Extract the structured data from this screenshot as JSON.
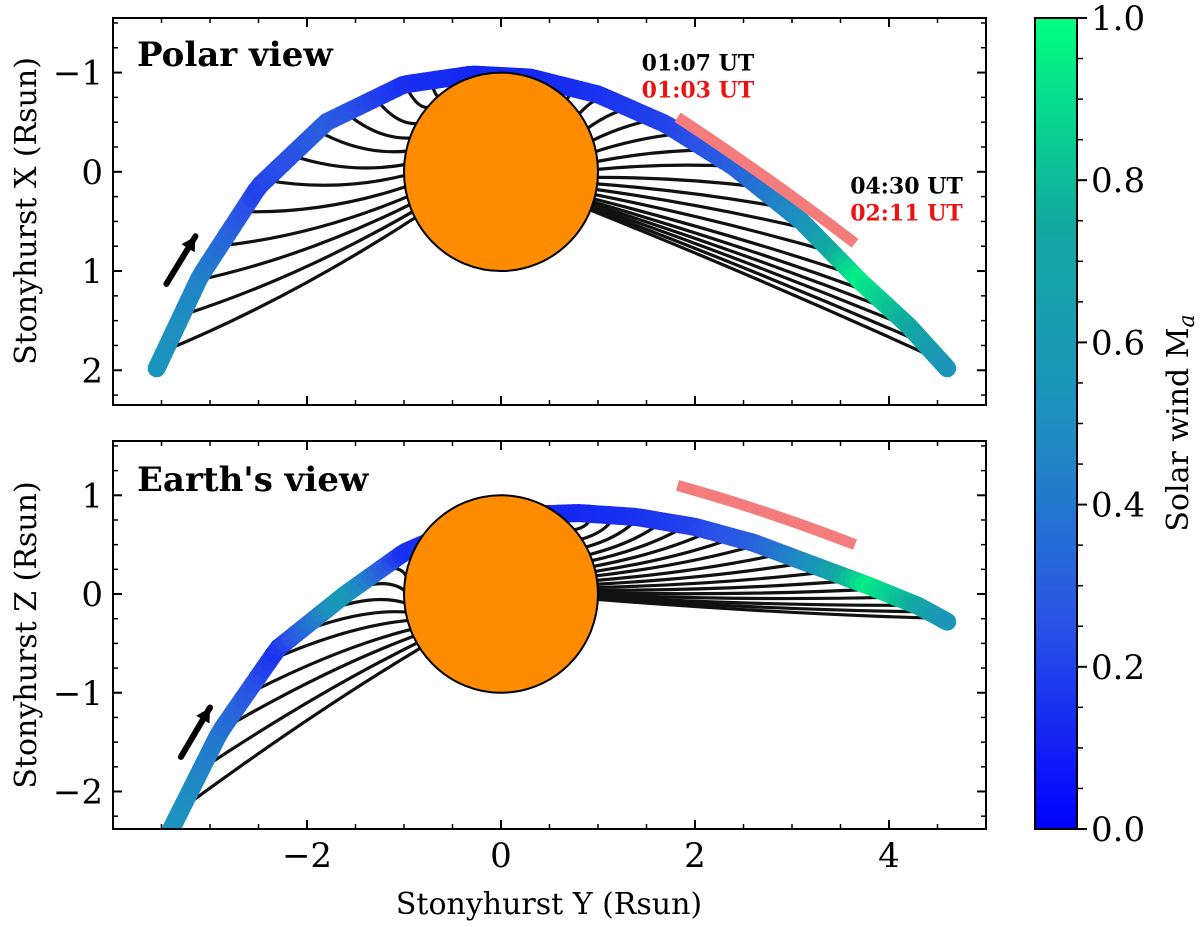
{
  "chart_data": [
    {
      "type": "line",
      "panel": "top",
      "title": "Polar view",
      "xlabel": "",
      "ylabel": "Stonyhurst X (Rsun)",
      "xlim": [
        -4.0,
        5.0
      ],
      "ylim": [
        2.35,
        -1.55
      ],
      "y_inverted": true,
      "xticks": [
        -2,
        0,
        2,
        4
      ],
      "yticks": [
        -1,
        0,
        1,
        2
      ],
      "ytick_labels": [
        "−1",
        "0",
        "1",
        "2"
      ],
      "sun": {
        "center": [
          0,
          0
        ],
        "radius": 1.0,
        "color": "#ff8c00"
      },
      "trajectory": {
        "x": [
          -3.55,
          -3.1,
          -2.5,
          -1.8,
          -1.0,
          -0.3,
          0.3,
          1.0,
          1.7,
          2.4,
          3.1,
          3.7,
          4.2,
          4.6
        ],
        "y": [
          1.98,
          1.05,
          0.15,
          -0.5,
          -0.88,
          -0.98,
          -0.95,
          -0.78,
          -0.48,
          -0.05,
          0.5,
          1.1,
          1.55,
          1.98
        ],
        "ma": [
          0.55,
          0.45,
          0.2,
          0.3,
          0.15,
          0.12,
          0.12,
          0.15,
          0.2,
          0.3,
          0.5,
          0.95,
          0.75,
          0.55
        ]
      },
      "red_segment": {
        "x": [
          1.82,
          3.65
        ],
        "y": [
          -0.55,
          0.72
        ],
        "color": "#f47c7c"
      },
      "arrow": {
        "x": [
          -3.45,
          -3.15
        ],
        "y": [
          1.13,
          0.65
        ]
      },
      "annotations": [
        {
          "text": "01:07 UT",
          "color": "#000000",
          "x": 1.45,
          "y": -1.02
        },
        {
          "text": "01:03 UT",
          "color": "#ee1111",
          "x": 1.45,
          "y": -0.75
        },
        {
          "text": "04:30 UT",
          "color": "#000000",
          "x": 3.6,
          "y": 0.22
        },
        {
          "text": "02:11 UT",
          "color": "#ee1111",
          "x": 3.6,
          "y": 0.49
        }
      ]
    },
    {
      "type": "line",
      "panel": "bottom",
      "title": "Earth's view",
      "xlabel": "Stonyhurst Y (Rsun)",
      "ylabel": "Stonyhurst Z (Rsun)",
      "xlim": [
        -4.0,
        5.0
      ],
      "ylim": [
        -2.38,
        1.55
      ],
      "xticks": [
        -2,
        0,
        2,
        4
      ],
      "xtick_labels": [
        "−2",
        "0",
        "2",
        "4"
      ],
      "yticks": [
        1,
        0,
        -1,
        -2
      ],
      "ytick_labels": [
        "1",
        "0",
        "−1",
        "−2"
      ],
      "sun": {
        "center": [
          0,
          0
        ],
        "radius": 1.0,
        "color": "#ff8c00"
      },
      "trajectory": {
        "x": [
          -3.4,
          -2.9,
          -2.3,
          -1.6,
          -1.0,
          -0.4,
          0.2,
          0.8,
          1.4,
          2.0,
          2.6,
          3.2,
          3.8,
          4.3,
          4.6
        ],
        "y": [
          -2.38,
          -1.4,
          -0.55,
          0.0,
          0.42,
          0.68,
          0.8,
          0.82,
          0.78,
          0.68,
          0.52,
          0.3,
          0.08,
          -0.12,
          -0.28
        ],
        "ma": [
          0.55,
          0.4,
          0.15,
          0.6,
          0.15,
          0.12,
          0.12,
          0.12,
          0.15,
          0.2,
          0.3,
          0.5,
          0.95,
          0.75,
          0.55
        ]
      },
      "red_segment": {
        "x": [
          1.82,
          3.65
        ],
        "y": [
          1.1,
          0.5
        ],
        "color": "#f47c7c"
      },
      "arrow": {
        "x": [
          -3.3,
          -3.0
        ],
        "y": [
          -1.65,
          -1.15
        ]
      }
    },
    {
      "type": "heatmap",
      "panel": "colorbar",
      "label": "Solar wind M",
      "label_subscript": "a",
      "range": [
        0.0,
        1.0
      ],
      "ticks": [
        0.0,
        0.2,
        0.4,
        0.6,
        0.8,
        1.0
      ],
      "tick_labels": [
        "0.0",
        "0.2",
        "0.4",
        "0.6",
        "0.8",
        "1.0"
      ],
      "colors": [
        "#0000ff",
        "#2a52e6",
        "#1e90c0",
        "#11aaa0",
        "#00ff80"
      ]
    }
  ]
}
